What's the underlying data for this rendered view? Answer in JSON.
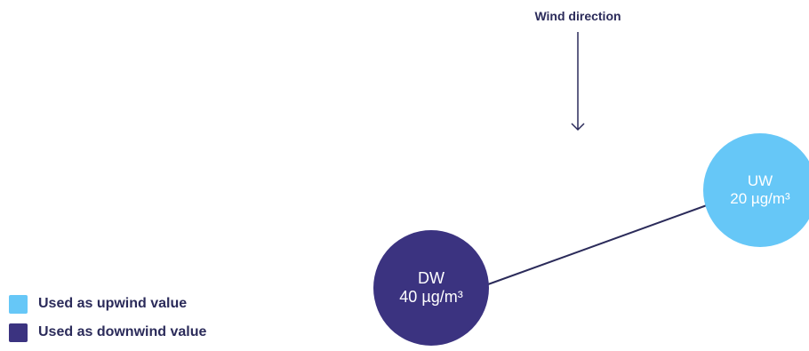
{
  "wind": {
    "label": "Wind direction"
  },
  "nodes": {
    "upwind": {
      "label": "UW",
      "value": "20 µg/m³",
      "color": "#66c7f7"
    },
    "downwind": {
      "label": "DW",
      "value": "40 µg/m³",
      "color": "#3b3380"
    }
  },
  "legend": {
    "items": [
      {
        "label": "Used as upwind value",
        "color": "#66c7f7"
      },
      {
        "label": "Used as downwind value",
        "color": "#3b3380"
      }
    ]
  },
  "colors": {
    "text": "#2b2b5a",
    "line": "#2b2b5a"
  }
}
